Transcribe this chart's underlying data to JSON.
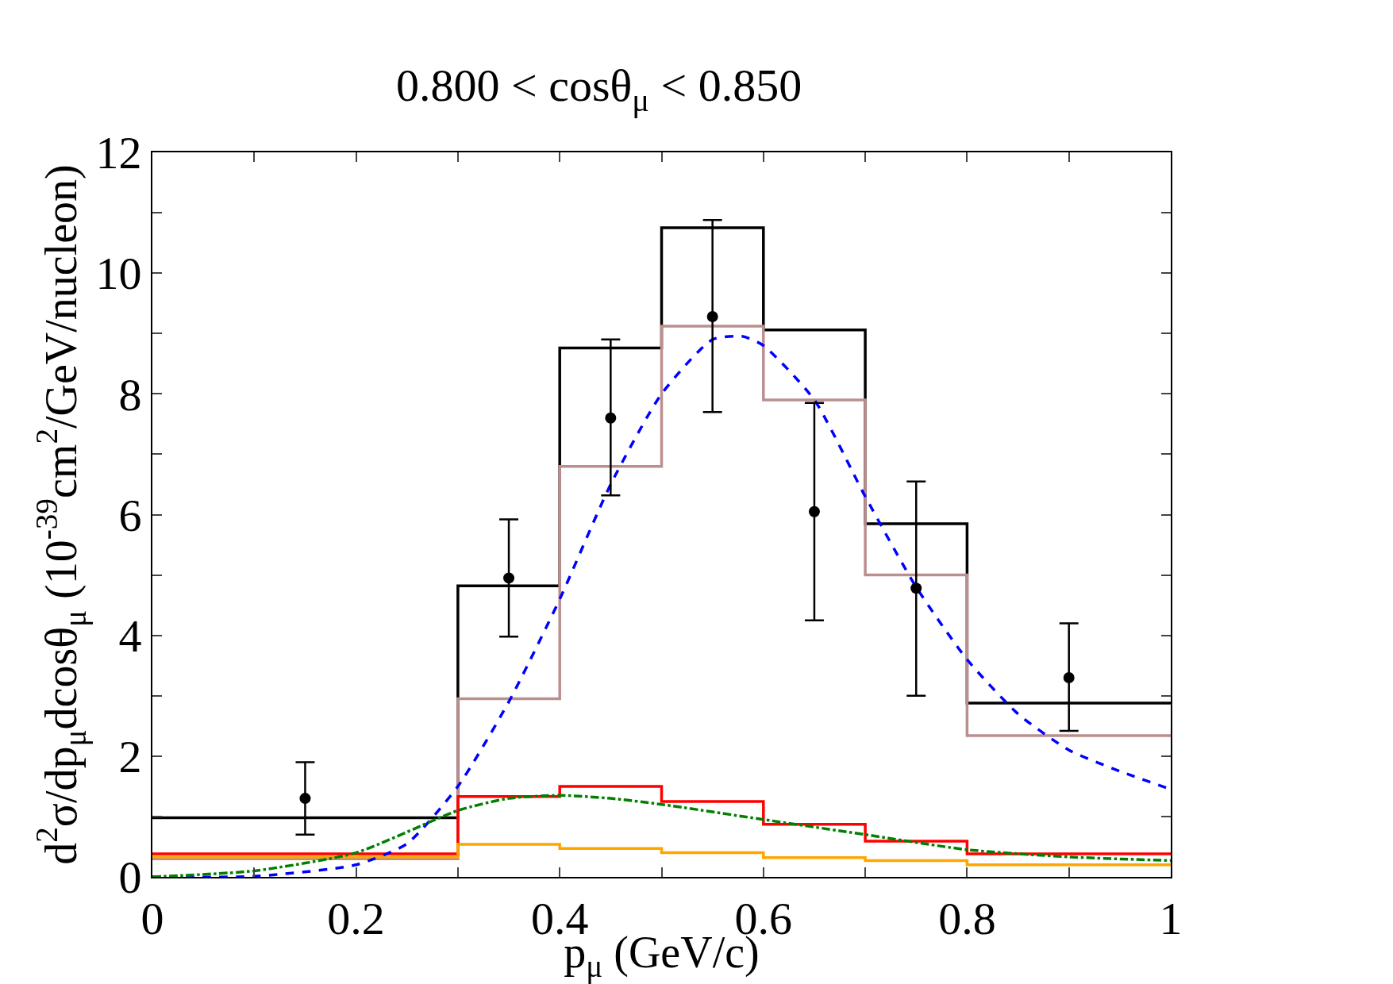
{
  "chart_data": {
    "type": "step",
    "title": "0.800 < cosθ$_{μ}$ < 0.850",
    "xlabel": "p$_{μ}$ (GeV/c)",
    "ylabel": "d$^{2}$σ/dp$_{μ}$dcosθ$_{μ}$ (10$^{-39}$cm$^{2}$/GeV/nucleon)",
    "xlim": [
      0,
      1
    ],
    "ylim": [
      0,
      12
    ],
    "xticks": [
      0,
      {
        "value": 0.1,
        "label": null
      },
      {
        "value": 0.2,
        "label": "0.2"
      },
      {
        "value": 0.3,
        "label": null
      },
      {
        "value": 0.4,
        "label": "0.4"
      },
      {
        "value": 0.5,
        "label": null
      },
      {
        "value": 0.6,
        "label": "0.6"
      },
      {
        "value": 0.7,
        "label": null
      },
      {
        "value": 0.8,
        "label": "0.8"
      },
      {
        "value": 0.9,
        "label": null
      },
      1
    ],
    "yticks": [
      0,
      {
        "value": 1,
        "label": null
      },
      2,
      {
        "value": 3,
        "label": null
      },
      4,
      {
        "value": 5,
        "label": null
      },
      6,
      {
        "value": 7,
        "label": null
      },
      8,
      {
        "value": 9,
        "label": null
      },
      10,
      {
        "value": 11,
        "label": null
      },
      12
    ],
    "grid": false,
    "series": [
      {
        "type": "step",
        "color": "#000000",
        "line_style": "solid",
        "x": [
          0,
          0.3,
          0.4,
          0.5,
          0.6,
          0.7,
          0.8,
          1.0
        ],
        "values": [
          0.98,
          4.82,
          8.76,
          10.75,
          9.06,
          5.85,
          2.88,
          2.88
        ]
      },
      {
        "type": "step",
        "color": "#bc8f8f",
        "line_style": "solid",
        "x": [
          0,
          0.3,
          0.4,
          0.5,
          0.6,
          0.7,
          0.8,
          1.0
        ],
        "values": [
          0.3,
          2.95,
          6.8,
          9.12,
          7.9,
          5.0,
          2.34,
          2.34
        ]
      },
      {
        "type": "step",
        "color": "#ff0000",
        "line_style": "solid",
        "x": [
          0,
          0.3,
          0.4,
          0.5,
          0.6,
          0.7,
          0.8,
          1.0
        ],
        "values": [
          0.38,
          1.33,
          1.5,
          1.25,
          0.87,
          0.59,
          0.38,
          0.38
        ]
      },
      {
        "type": "step",
        "color": "#ffa500",
        "line_style": "solid",
        "x": [
          0,
          0.3,
          0.4,
          0.5,
          0.6,
          0.7,
          0.8,
          1.0
        ],
        "values": [
          0.33,
          0.54,
          0.47,
          0.4,
          0.32,
          0.27,
          0.2,
          0.2
        ]
      },
      {
        "type": "line",
        "color": "#0000ff",
        "line_style": "dashed",
        "x": [
          0,
          0.1,
          0.2,
          0.25,
          0.3,
          0.35,
          0.4,
          0.45,
          0.5,
          0.55,
          0.58,
          0.6,
          0.65,
          0.7,
          0.75,
          0.8,
          0.85,
          0.9,
          0.95,
          1.0
        ],
        "values": [
          0,
          0.01,
          0.2,
          0.55,
          1.5,
          2.9,
          4.6,
          6.5,
          8.0,
          8.9,
          8.95,
          8.8,
          7.9,
          6.3,
          4.8,
          3.6,
          2.7,
          2.1,
          1.75,
          1.45
        ]
      },
      {
        "type": "line",
        "color": "#008000",
        "line_style": "dashdot",
        "x": [
          0,
          0.1,
          0.2,
          0.3,
          0.35,
          0.4,
          0.45,
          0.5,
          0.6,
          0.7,
          0.8,
          0.9,
          1.0
        ],
        "values": [
          0,
          0.1,
          0.4,
          1.1,
          1.3,
          1.35,
          1.3,
          1.2,
          0.95,
          0.7,
          0.45,
          0.33,
          0.27
        ]
      },
      {
        "type": "scatter",
        "color": "#000000",
        "marker": "circle",
        "x": [
          0.15,
          0.35,
          0.45,
          0.55,
          0.65,
          0.75,
          0.9
        ],
        "values": [
          1.3,
          4.95,
          7.6,
          9.28,
          6.05,
          4.78,
          3.3
        ],
        "errors": [
          [
            0.7,
            1.9
          ],
          [
            3.98,
            5.92
          ],
          [
            6.32,
            8.9
          ],
          [
            7.7,
            10.88
          ],
          [
            4.25,
            7.85
          ],
          [
            3.0,
            6.55
          ],
          [
            2.42,
            4.2
          ]
        ]
      }
    ]
  }
}
